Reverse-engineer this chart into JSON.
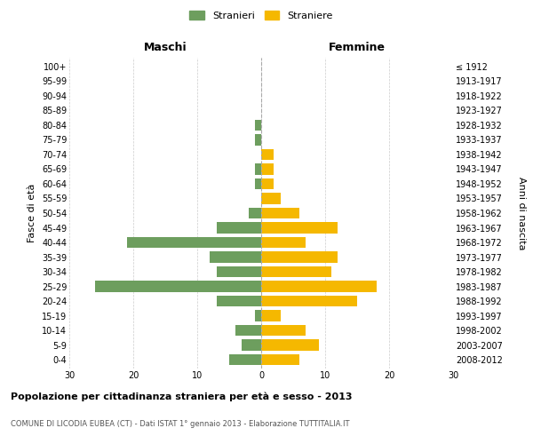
{
  "age_groups_bottom_to_top": [
    "0-4",
    "5-9",
    "10-14",
    "15-19",
    "20-24",
    "25-29",
    "30-34",
    "35-39",
    "40-44",
    "45-49",
    "50-54",
    "55-59",
    "60-64",
    "65-69",
    "70-74",
    "75-79",
    "80-84",
    "85-89",
    "90-94",
    "95-99",
    "100+"
  ],
  "birth_years_bottom_to_top": [
    "2008-2012",
    "2003-2007",
    "1998-2002",
    "1993-1997",
    "1988-1992",
    "1983-1987",
    "1978-1982",
    "1973-1977",
    "1968-1972",
    "1963-1967",
    "1958-1962",
    "1953-1957",
    "1948-1952",
    "1943-1947",
    "1938-1942",
    "1933-1937",
    "1928-1932",
    "1923-1927",
    "1918-1922",
    "1913-1917",
    "≤ 1912"
  ],
  "maschi_bottom_to_top": [
    5,
    3,
    4,
    1,
    7,
    26,
    7,
    8,
    21,
    7,
    2,
    0,
    1,
    1,
    0,
    1,
    1,
    0,
    0,
    0,
    0
  ],
  "femmine_bottom_to_top": [
    6,
    9,
    7,
    3,
    15,
    18,
    11,
    12,
    7,
    12,
    6,
    3,
    2,
    2,
    2,
    0,
    0,
    0,
    0,
    0,
    0
  ],
  "male_color": "#6d9e5e",
  "female_color": "#f5b800",
  "male_label": "Stranieri",
  "female_label": "Straniere",
  "title": "Popolazione per cittadinanza straniera per età e sesso - 2013",
  "subtitle": "COMUNE DI LICODIA EUBEA (CT) - Dati ISTAT 1° gennaio 2013 - Elaborazione TUTTITALIA.IT",
  "ylabel_left": "Fasce di età",
  "ylabel_right": "Anni di nascita",
  "xlabel_left": "Maschi",
  "xlabel_right": "Femmine",
  "xlim": 30,
  "background_color": "#ffffff",
  "grid_color": "#cccccc"
}
